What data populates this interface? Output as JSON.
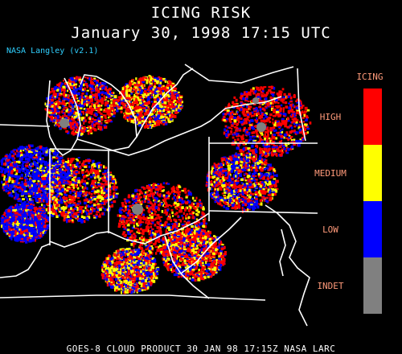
{
  "header": {
    "title": "ICING RISK",
    "subtitle": "January 30, 1998 17:15 UTC",
    "credit": "NASA Langley (v2.1)"
  },
  "legend": {
    "title": "ICING",
    "items": [
      {
        "label": "HIGH",
        "color": "#ff0000"
      },
      {
        "label": "MEDIUM",
        "color": "#ffff00"
      },
      {
        "label": "LOW",
        "color": "#0000ff"
      },
      {
        "label": "INDET",
        "color": "#808080"
      }
    ]
  },
  "footer": {
    "text": "GOES-8 CLOUD PRODUCT   30 JAN 98 17:15Z NASA LARC"
  }
}
